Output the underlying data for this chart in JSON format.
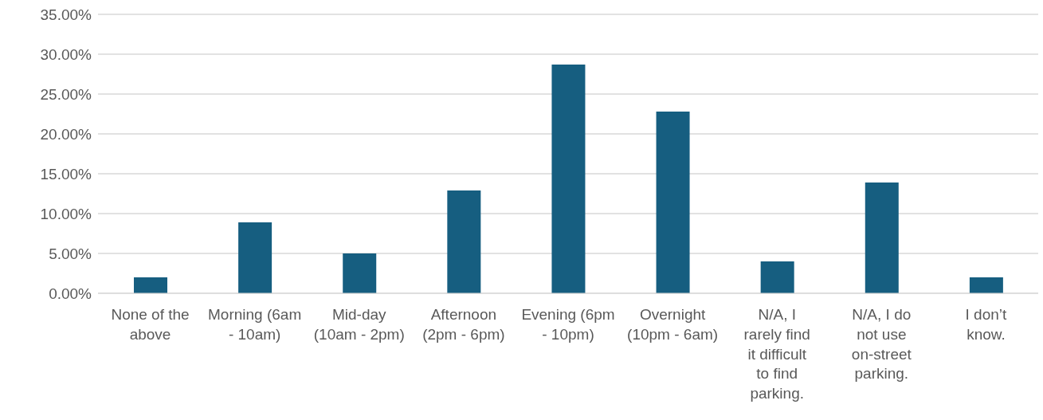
{
  "chart_data": {
    "type": "bar",
    "categories": [
      "None of the above",
      "Morning (6am - 10am)",
      "Mid-day (10am - 2pm)",
      "Afternoon (2pm - 6pm)",
      "Evening (6pm - 10pm)",
      "Overnight (10pm - 6am)",
      "N/A, I rarely find it difficult to find parking.",
      "N/A, I do not use on-street parking.",
      "I don’t know."
    ],
    "values": [
      2.0,
      8.9,
      5.0,
      12.9,
      28.7,
      22.8,
      4.0,
      13.9,
      2.0
    ],
    "color": "#165e80",
    "ylim": [
      0,
      35
    ],
    "yticks": [
      {
        "value": 0,
        "label": "0.00%"
      },
      {
        "value": 5,
        "label": "5.00%"
      },
      {
        "value": 10,
        "label": "10.00%"
      },
      {
        "value": 15,
        "label": "15.00%"
      },
      {
        "value": 20,
        "label": "20.00%"
      },
      {
        "value": 25,
        "label": "25.00%"
      },
      {
        "value": 30,
        "label": "30.00%"
      },
      {
        "value": 35,
        "label": "35.00%"
      }
    ],
    "grid": "y",
    "legend": false
  }
}
